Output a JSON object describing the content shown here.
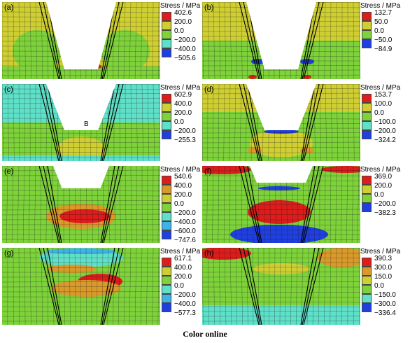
{
  "legend_title": "Stress / MPa",
  "caption": "Color online",
  "palette": {
    "red": "#dd1c1c",
    "orange": "#d99a2b",
    "yellow": "#cfcf33",
    "green": "#7ed23a",
    "cyan": "#5fe0c8",
    "lightblue": "#3fb2e8",
    "blue": "#1f3fe0",
    "mesh": "#1a1a1a"
  },
  "panels": [
    {
      "label": "(a)",
      "ticks": [
        "402.6",
        "200.0",
        "0.0",
        "−200.0",
        "−400.0",
        "−505.6"
      ],
      "swatches": [
        "#dd1c1c",
        "#cfcf33",
        "#7ed23a",
        "#5fe0c8",
        "#1f3fe0"
      ]
    },
    {
      "label": "(b)",
      "ticks": [
        "132.7",
        "50.0",
        "0.0",
        "−50.0",
        "−84.9"
      ],
      "swatches": [
        "#dd1c1c",
        "#cfcf33",
        "#7ed23a",
        "#1f3fe0"
      ]
    },
    {
      "label": "(c)",
      "ticks": [
        "602.9",
        "400.0",
        "200.0",
        "0.0",
        "−200.0",
        "−255.3"
      ],
      "swatches": [
        "#dd1c1c",
        "#cfcf33",
        "#7ed23a",
        "#5fe0c8",
        "#1f3fe0"
      ]
    },
    {
      "label": "(d)",
      "ticks": [
        "153.7",
        "100.0",
        "0.0",
        "−100.0",
        "−200.0",
        "−324.2"
      ],
      "swatches": [
        "#dd1c1c",
        "#cfcf33",
        "#7ed23a",
        "#5fe0c8",
        "#1f3fe0"
      ]
    },
    {
      "label": "(e)",
      "ticks": [
        "540.6",
        "400.0",
        "200.0",
        "0.0",
        "−200.0",
        "−400.0",
        "−600.0",
        "−747.6"
      ],
      "swatches": [
        "#dd1c1c",
        "#d99a2b",
        "#cfcf33",
        "#7ed23a",
        "#5fe0c8",
        "#3fb2e8",
        "#1f3fe0"
      ]
    },
    {
      "label": "(f)",
      "ticks": [
        "369.0",
        "200.0",
        "0.0",
        "−200.0",
        "−382.3"
      ],
      "swatches": [
        "#dd1c1c",
        "#cfcf33",
        "#7ed23a",
        "#1f3fe0"
      ]
    },
    {
      "label": "(g)",
      "ticks": [
        "617.1",
        "400.0",
        "200.0",
        "0.0",
        "−200.0",
        "−400.0",
        "−577.3"
      ],
      "swatches": [
        "#dd1c1c",
        "#cfcf33",
        "#7ed23a",
        "#5fe0c8",
        "#3fb2e8",
        "#1f3fe0"
      ]
    },
    {
      "label": "(h)",
      "ticks": [
        "390.3",
        "300.0",
        "150.0",
        "0.0",
        "−150.0",
        "−300.0",
        "−336.4"
      ],
      "swatches": [
        "#dd1c1c",
        "#d99a2b",
        "#cfcf33",
        "#7ed23a",
        "#5fe0c8",
        "#1f3fe0"
      ]
    }
  ],
  "point_label": "B"
}
